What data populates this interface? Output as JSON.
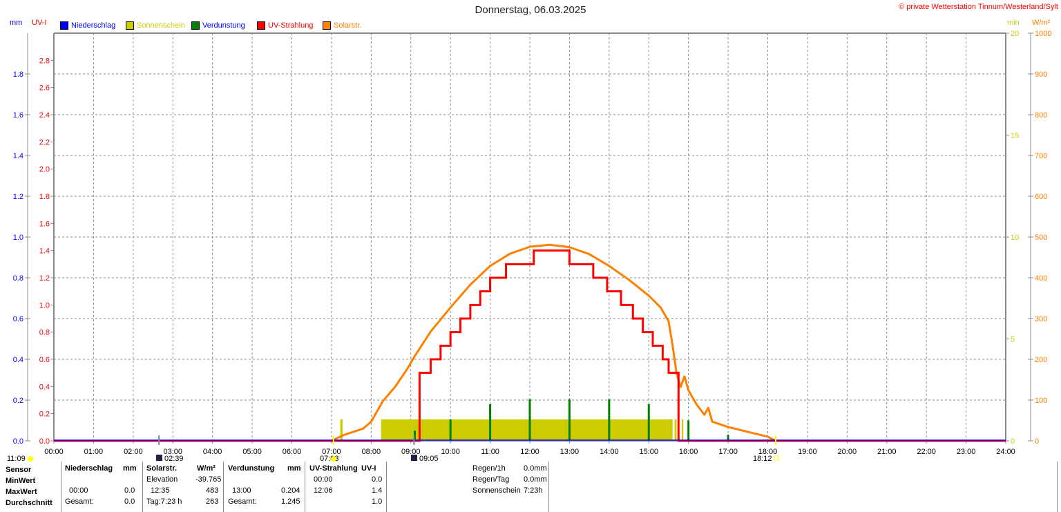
{
  "title": "Donnerstag, 06.03.2025",
  "copyright": "© private Wetterstation Tinnum/Westerland/Sylt",
  "axis_units": {
    "mm": "mm",
    "uvi": "UV-I",
    "min": "min",
    "wm2": "W/m²"
  },
  "legend": [
    {
      "label": "Niederschlag",
      "color": "#0000ff",
      "text_color": "#0000ff"
    },
    {
      "label": "Sonnenschein",
      "color": "#cccc00",
      "text_color": "#cccc00"
    },
    {
      "label": "Verdunstung",
      "color": "#008000",
      "text_color": "#0000ff"
    },
    {
      "label": "UV-Strahlung",
      "color": "#ff0000",
      "text_color": "#ff0000"
    },
    {
      "label": "Solarstr.",
      "color": "#ff8000",
      "text_color": "#ff8000"
    }
  ],
  "markers": [
    {
      "label": "11:09",
      "icon": "sun-icon",
      "time": null
    },
    {
      "label": "02:39",
      "icon": "moonrise-icon",
      "time": 2.65
    },
    {
      "label": "07:03",
      "icon": "sunrise-icon",
      "time": 7.05
    },
    {
      "label": "09:05",
      "icon": "moonset-icon",
      "time": 9.08
    },
    {
      "label": "18:12",
      "icon": "sunset-icon",
      "time": 18.2
    }
  ],
  "chart_data": {
    "type": "line",
    "title": "Donnerstag, 06.03.2025",
    "x_ticks": [
      "00:00",
      "01:00",
      "02:00",
      "03:00",
      "04:00",
      "05:00",
      "06:00",
      "07:00",
      "08:00",
      "09:00",
      "10:00",
      "11:00",
      "12:00",
      "13:00",
      "14:00",
      "15:00",
      "16:00",
      "17:00",
      "18:00",
      "19:00",
      "20:00",
      "21:00",
      "22:00",
      "23:00",
      "24:00"
    ],
    "xlim": [
      0,
      24
    ],
    "axes": {
      "mm": {
        "ylim": [
          0,
          2
        ],
        "ticks": [
          "0.0",
          "0.2",
          "0.4",
          "0.6",
          "0.8",
          "1.0",
          "1.2",
          "1.4",
          "1.6",
          "1.8"
        ],
        "color": "#0000ff"
      },
      "uvi": {
        "ylim": [
          0,
          3
        ],
        "ticks": [
          "0.0",
          "0.2",
          "0.4",
          "0.6",
          "0.8",
          "1.0",
          "1.2",
          "1.4",
          "1.6",
          "1.8",
          "2.0",
          "2.2",
          "2.4",
          "2.6",
          "2.8"
        ],
        "color": "#ff0000"
      },
      "min": {
        "ylim": [
          0,
          20
        ],
        "ticks": [
          "0",
          "5",
          "10",
          "15",
          "20"
        ],
        "color": "#cccc00"
      },
      "wm2": {
        "ylim": [
          0,
          1000
        ],
        "ticks": [
          "0",
          "100",
          "200",
          "300",
          "400",
          "500",
          "600",
          "700",
          "800",
          "900",
          "1000"
        ],
        "color": "#ff8000"
      }
    },
    "grid": true,
    "series": [
      {
        "name": "Solarstr.",
        "axis": "wm2",
        "color": "#ff8000",
        "x": [
          7.0,
          7.3,
          7.8,
          8.0,
          8.3,
          8.6,
          8.9,
          9.1,
          9.5,
          10.0,
          10.5,
          11.0,
          11.5,
          12.0,
          12.5,
          13.0,
          13.5,
          14.0,
          14.5,
          15.0,
          15.3,
          15.5,
          15.6,
          15.65,
          15.7,
          15.8,
          15.9,
          16.0,
          16.2,
          16.4,
          16.5,
          16.6,
          17.0,
          17.5,
          18.0,
          18.2
        ],
        "y": [
          0,
          14,
          30,
          47,
          98,
          132,
          175,
          208,
          268,
          327,
          383,
          429,
          459,
          476,
          481,
          475,
          458,
          429,
          395,
          356,
          327,
          293,
          234,
          200,
          166,
          132,
          158,
          124,
          90,
          64,
          81,
          47,
          34,
          22,
          10,
          0
        ]
      },
      {
        "name": "UV-Strahlung",
        "axis": "uvi",
        "color": "#ff0000",
        "step": true,
        "x": [
          0,
          9.22,
          9.5,
          9.75,
          10.0,
          10.25,
          10.5,
          10.75,
          11.0,
          11.4,
          12.1,
          13.0,
          13.6,
          13.95,
          14.3,
          14.6,
          14.85,
          15.1,
          15.35,
          15.5,
          15.75,
          24
        ],
        "y": [
          0,
          0.5,
          0.6,
          0.7,
          0.8,
          0.9,
          1.0,
          1.1,
          1.2,
          1.3,
          1.4,
          1.3,
          1.2,
          1.1,
          1.0,
          0.9,
          0.8,
          0.7,
          0.6,
          0.5,
          0,
          0
        ]
      },
      {
        "name": "Sonnenschein",
        "axis": "min",
        "color": "#cccc00",
        "type": "bar",
        "segments": [
          [
            7.22,
            7.28,
            1.05
          ],
          [
            8.25,
            15.6,
            1.05
          ],
          [
            15.65,
            15.7,
            1.05
          ],
          [
            15.83,
            15.87,
            1.05
          ]
        ]
      },
      {
        "name": "Verdunstung",
        "axis": "mm",
        "color": "#008000",
        "type": "bar",
        "x": [
          9.1,
          10.0,
          11.0,
          12.0,
          13.0,
          14.0,
          15.0,
          16.0,
          17.0
        ],
        "y": [
          0.05,
          0.105,
          0.18,
          0.204,
          0.204,
          0.204,
          0.18,
          0.1,
          0.03
        ]
      },
      {
        "name": "Niederschlag",
        "axis": "mm",
        "color": "#0000ff",
        "type": "bar",
        "x": [],
        "y": []
      }
    ]
  },
  "table": {
    "row_labels": [
      "Sensor",
      "MinWert",
      "MaxWert",
      "Durchschnitt"
    ],
    "niederschlag": {
      "header": "Niederschlag",
      "unit": "mm",
      "max_time": "00:00",
      "max": "0.0",
      "avg_label": "Gesamt:",
      "avg": "0.0"
    },
    "solar": {
      "header": "Solarstr.",
      "unit": "W/m²",
      "min_label": "Elevation",
      "min": "-39.765",
      "max_time": "12:35",
      "max": "483",
      "avg_label": "Tag:7:23 h",
      "avg": "263"
    },
    "verdunstung": {
      "header": "Verdunstung",
      "unit": "mm",
      "max_time": "13:00",
      "max": "0.204",
      "avg_label": "Gesamt:",
      "avg": "1.245"
    },
    "uv": {
      "header": "UV-Strahlung",
      "unit": "UV-I",
      "min_time": "00:00",
      "min": "0.0",
      "max_time": "12:06",
      "max": "1.4",
      "avg": "1.0"
    },
    "summary": [
      {
        "label": "Regen/1h",
        "value": "0.0mm"
      },
      {
        "label": "Regen/Tag",
        "value": "0.0mm"
      },
      {
        "label": "Sonnenschein",
        "value": "7:23h"
      }
    ]
  }
}
